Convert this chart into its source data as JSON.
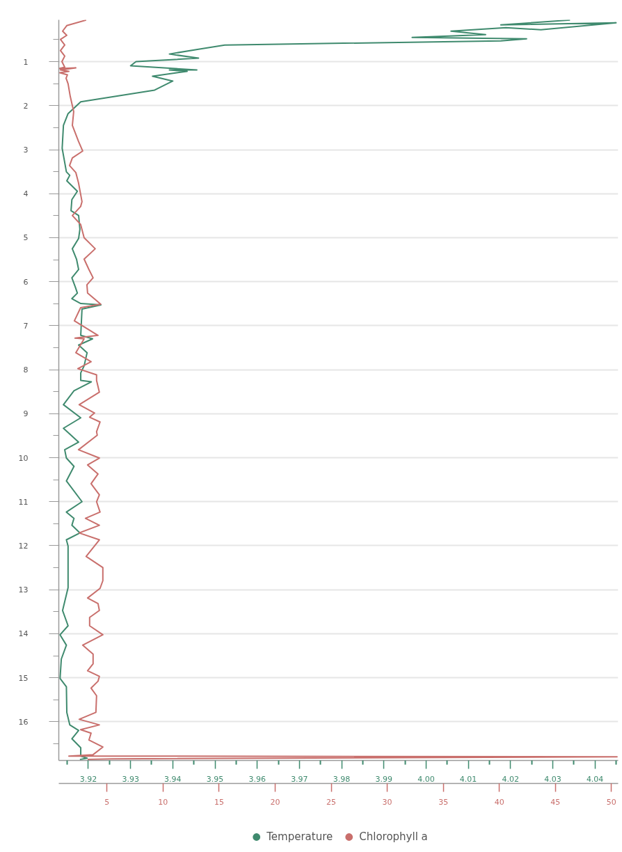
{
  "chart_data": {
    "type": "line",
    "series": [
      {
        "name": "Temperature",
        "color": "#3f8a6e",
        "x": [
          4.0341,
          4.0177,
          4.045,
          4.0272,
          4.0189,
          4.0059,
          4.0141,
          3.9967,
          4.0238,
          4.0177,
          3.9523,
          3.9461,
          3.9392,
          3.9461,
          3.9313,
          3.93,
          3.9457,
          3.9392,
          3.9434,
          3.9352,
          3.94,
          3.9357,
          3.9182,
          3.9152,
          3.9141,
          3.9138,
          3.9148,
          3.9156,
          3.9149,
          3.9174,
          3.9161,
          3.9159,
          3.9177,
          3.918,
          3.9177,
          3.9162,
          3.9172,
          3.9177,
          3.9161,
          3.9169,
          3.9174,
          3.9161,
          3.9182,
          3.923,
          3.9185,
          3.9182,
          3.921,
          3.9177,
          3.9197,
          3.919,
          3.9182,
          3.9182,
          3.9207,
          3.9166,
          3.9141,
          3.9182,
          3.9141,
          3.9177,
          3.9144,
          3.9148,
          3.9166,
          3.9148,
          3.9185,
          3.9148,
          3.9166,
          3.9161,
          3.918,
          3.9148,
          3.9152,
          3.9152,
          3.9139,
          3.9152,
          3.9133,
          3.9148,
          3.9136,
          3.9133,
          3.9148,
          3.9149,
          3.9156,
          3.9177,
          3.9161,
          3.9182,
          3.9182,
          3.9197,
          3.918
        ],
        "values": [
          0.055,
          0.165,
          0.118,
          0.276,
          0.228,
          0.307,
          0.386,
          0.449,
          0.48,
          0.528,
          0.622,
          0.717,
          0.827,
          0.921,
          1.0,
          1.094,
          1.189,
          1.19,
          1.22,
          1.331,
          1.441,
          1.646,
          1.913,
          2.181,
          2.449,
          2.969,
          3.504,
          3.583,
          3.709,
          3.945,
          4.134,
          4.386,
          4.496,
          4.811,
          5.016,
          5.252,
          5.488,
          5.724,
          5.913,
          6.118,
          6.26,
          6.386,
          6.496,
          6.528,
          6.622,
          7.22,
          7.299,
          7.441,
          7.614,
          7.913,
          8.071,
          8.244,
          8.276,
          8.48,
          8.795,
          9.094,
          9.331,
          9.646,
          9.819,
          10.008,
          10.197,
          10.528,
          11.0,
          11.236,
          11.378,
          11.535,
          11.709,
          11.866,
          12.008,
          12.953,
          13.472,
          13.819,
          14.024,
          14.26,
          14.575,
          15.016,
          15.205,
          15.787,
          16.071,
          16.197,
          16.386,
          16.591,
          16.78,
          16.827,
          16.858
        ]
      },
      {
        "name": "Chlorophyll a",
        "color": "#c96f6c",
        "axis": "x2",
        "x": [
          3.14,
          1.41,
          1.04,
          1.41,
          0.85,
          1.23,
          0.85,
          1.23,
          0.98,
          1.23,
          0.73,
          2.22,
          0.85,
          1.6,
          0.79,
          1.47,
          1.35,
          1.53,
          1.72,
          2.03,
          1.91,
          2.46,
          2.83,
          1.91,
          1.66,
          2.22,
          2.46,
          2.77,
          2.65,
          1.91,
          2.65,
          2.96,
          3.95,
          2.96,
          3.39,
          3.76,
          3.21,
          3.27,
          4.44,
          2.65,
          2.09,
          4.2,
          2.15,
          2.96,
          2.22,
          3.58,
          2.4,
          4.07,
          4.07,
          4.32,
          2.52,
          3.89,
          3.45,
          4.38,
          4.07,
          4.13,
          2.46,
          4.32,
          3.27,
          4.2,
          3.58,
          4.32,
          4.07,
          4.38,
          3.08,
          4.32,
          2.52,
          4.32,
          3.14,
          4.63,
          4.63,
          4.38,
          3.27,
          4.2,
          4.32,
          3.45,
          3.45,
          4.63,
          2.83,
          3.76,
          3.76,
          3.27,
          4.32,
          4.2,
          3.58,
          4.07,
          4.01,
          2.52,
          4.32,
          2.65,
          3.58,
          3.39,
          4.63,
          3.76,
          1.6,
          50.5,
          5.43,
          3.27
        ],
        "values": [
          0.055,
          0.181,
          0.307,
          0.402,
          0.496,
          0.622,
          0.748,
          0.874,
          1.0,
          1.126,
          1.157,
          1.142,
          1.189,
          1.22,
          1.252,
          1.299,
          1.378,
          1.504,
          1.787,
          2.134,
          2.449,
          2.811,
          3.031,
          3.189,
          3.362,
          3.52,
          3.756,
          4.181,
          4.291,
          4.496,
          4.701,
          5.0,
          5.252,
          5.488,
          5.724,
          5.913,
          6.071,
          6.26,
          6.512,
          6.591,
          6.89,
          7.22,
          7.283,
          7.299,
          7.614,
          7.819,
          7.976,
          8.118,
          8.244,
          8.512,
          8.795,
          8.984,
          9.079,
          9.189,
          9.409,
          9.488,
          9.819,
          10.008,
          10.165,
          10.37,
          10.591,
          10.843,
          11.0,
          11.236,
          11.378,
          11.535,
          11.709,
          11.866,
          12.244,
          12.496,
          12.795,
          12.969,
          13.189,
          13.315,
          13.472,
          13.63,
          13.819,
          14.024,
          14.26,
          14.465,
          14.685,
          14.843,
          14.969,
          15.079,
          15.236,
          15.409,
          15.787,
          15.945,
          16.071,
          16.181,
          16.26,
          16.417,
          16.575,
          16.748,
          16.78,
          16.795,
          16.843,
          16.858
        ]
      }
    ],
    "xlim": [
      3.913,
      4.0455
    ],
    "xticks": [
      {
        "value": 3.915,
        "label": null
      },
      3.92,
      {
        "value": 3.925,
        "label": null
      },
      3.93,
      {
        "value": 3.935,
        "label": null
      },
      3.94,
      {
        "value": 3.945,
        "label": null
      },
      3.95,
      {
        "value": 3.955,
        "label": null
      },
      3.96,
      {
        "value": 3.965,
        "label": null
      },
      3.97,
      {
        "value": 3.975,
        "label": null
      },
      3.98,
      {
        "value": 3.985,
        "label": null
      },
      3.99,
      {
        "value": 3.995,
        "label": null
      },
      {
        "value": 4.0,
        "label": "4.00"
      },
      {
        "value": 4.005,
        "label": null
      },
      4.01,
      {
        "value": 4.015,
        "label": null
      },
      4.02,
      {
        "value": 4.025,
        "label": null
      },
      4.03,
      {
        "value": 4.035,
        "label": null
      },
      4.04,
      {
        "value": 4.045,
        "label": null
      }
    ],
    "x2lim": [
      0.7,
      50.6
    ],
    "x2ticks": [
      5,
      10,
      15,
      20,
      25,
      30,
      35,
      40,
      45,
      50
    ],
    "ylim": [
      16.88,
      0.05
    ],
    "yticks": [
      {
        "value": 0.5,
        "label": null
      },
      1,
      {
        "value": 1.5,
        "label": null
      },
      2,
      {
        "value": 2.5,
        "label": null
      },
      3,
      {
        "value": 3.5,
        "label": null
      },
      4,
      {
        "value": 4.5,
        "label": null
      },
      5,
      {
        "value": 5.5,
        "label": null
      },
      6,
      {
        "value": 6.5,
        "label": null
      },
      7,
      {
        "value": 7.5,
        "label": null
      },
      8,
      {
        "value": 8.5,
        "label": null
      },
      9,
      {
        "value": 9.5,
        "label": null
      },
      10,
      {
        "value": 10.5,
        "label": null
      },
      11,
      {
        "value": 11.5,
        "label": null
      },
      12,
      {
        "value": 12.5,
        "label": null
      },
      13,
      {
        "value": 13.5,
        "label": null
      },
      14,
      {
        "value": 14.5,
        "label": null
      },
      15,
      {
        "value": 15.5,
        "label": null
      },
      16,
      {
        "value": 16.5,
        "label": null
      }
    ],
    "grid": "y",
    "legend": "bottom"
  }
}
